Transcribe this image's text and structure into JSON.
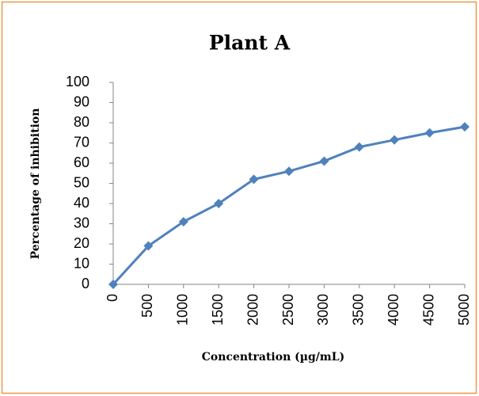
{
  "chart_data": {
    "type": "line",
    "title": "Plant A",
    "x_label": "Concentration  (µg/mL)",
    "y_label": "Percentage of inhibition",
    "x": [
      0,
      500,
      1000,
      1500,
      2000,
      2500,
      3000,
      3500,
      4000,
      4500,
      5000
    ],
    "series": [
      {
        "name": "Plant A",
        "color": "#4f81bd",
        "values": [
          0,
          19,
          31,
          40,
          52,
          56,
          61,
          68,
          71.5,
          75,
          78
        ]
      }
    ],
    "xlim": [
      0,
      5000
    ],
    "xticks": [
      0,
      500,
      1000,
      1500,
      2000,
      2500,
      3000,
      3500,
      4000,
      4500,
      5000
    ],
    "ylim": [
      0,
      100
    ],
    "yticks": [
      0,
      10,
      20,
      30,
      40,
      50,
      60,
      70,
      80,
      90,
      100
    ],
    "grid": false
  }
}
